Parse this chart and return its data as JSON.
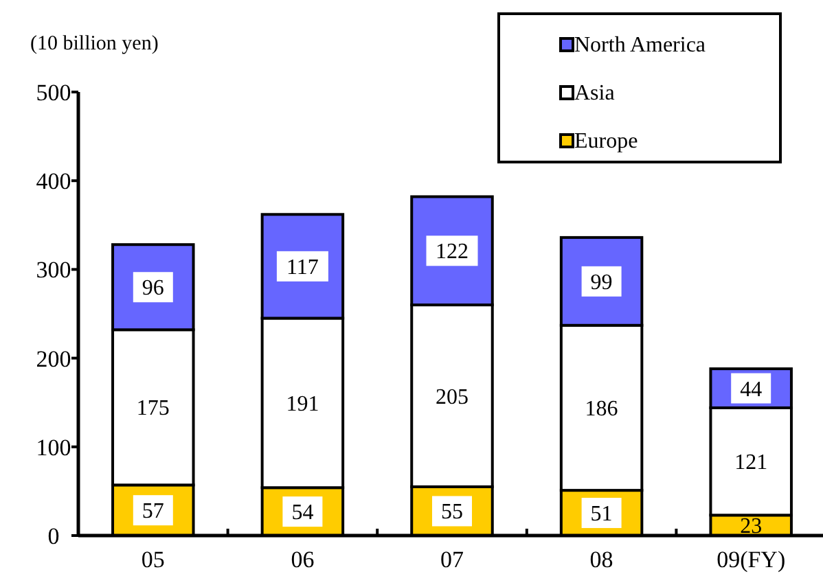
{
  "chart_data": {
    "type": "bar",
    "stacked": true,
    "ylabel": "(10 billion yen)",
    "categories": [
      "05",
      "06",
      "07",
      "08",
      "09(FY)"
    ],
    "series": [
      {
        "name": "Europe",
        "color": "#ffcc00",
        "values": [
          57,
          54,
          55,
          51,
          23
        ]
      },
      {
        "name": "Asia",
        "color": "#ffffff",
        "values": [
          175,
          191,
          205,
          186,
          121
        ]
      },
      {
        "name": "North America",
        "color": "#6666ff",
        "values": [
          96,
          117,
          122,
          99,
          44
        ]
      }
    ],
    "ylim": [
      0,
      500
    ],
    "yticks": [
      0,
      100,
      200,
      300,
      400,
      500
    ],
    "data_labels": true,
    "legend": "top right"
  }
}
